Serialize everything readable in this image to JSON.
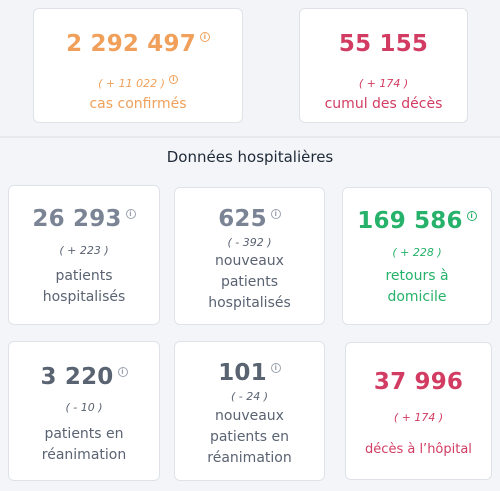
{
  "top": {
    "confirmed": {
      "value": "2 292 497",
      "delta": "( + 11 022 )",
      "label": "cas confirmés"
    },
    "deaths": {
      "value": "55 155",
      "delta": "( + 174 )",
      "label": "cumul des décès"
    }
  },
  "section_title": "Données hospitalières",
  "hospital": {
    "hospitalized": {
      "value": "26 293",
      "delta": "( + 223 )",
      "label_lines": [
        "patients",
        "hospitalisés"
      ]
    },
    "new_hospitalized": {
      "value": "625",
      "delta": "( - 392 )",
      "label_lines": [
        "nouveaux",
        "patients",
        "hospitalisés"
      ]
    },
    "home_returns": {
      "value": "169 586",
      "delta": "( + 228 )",
      "label_lines": [
        "retours à",
        "domicile"
      ]
    },
    "icu": {
      "value": "3 220",
      "delta": "( - 10 )",
      "label_lines": [
        "patients en",
        "réanimation"
      ]
    },
    "new_icu": {
      "value": "101",
      "delta": "( - 24 )",
      "label_lines": [
        "nouveaux",
        "patients en",
        "réanimation"
      ]
    },
    "hospital_deaths": {
      "value": "37 996",
      "delta": "( + 174 )",
      "label_lines": [
        "décès à l’hôpital"
      ]
    }
  },
  "info_glyph": "i",
  "colors": {
    "orange": "#f0a05a",
    "crimson": "#d23c62",
    "grey": "#7a8494",
    "green": "#26b26a"
  }
}
